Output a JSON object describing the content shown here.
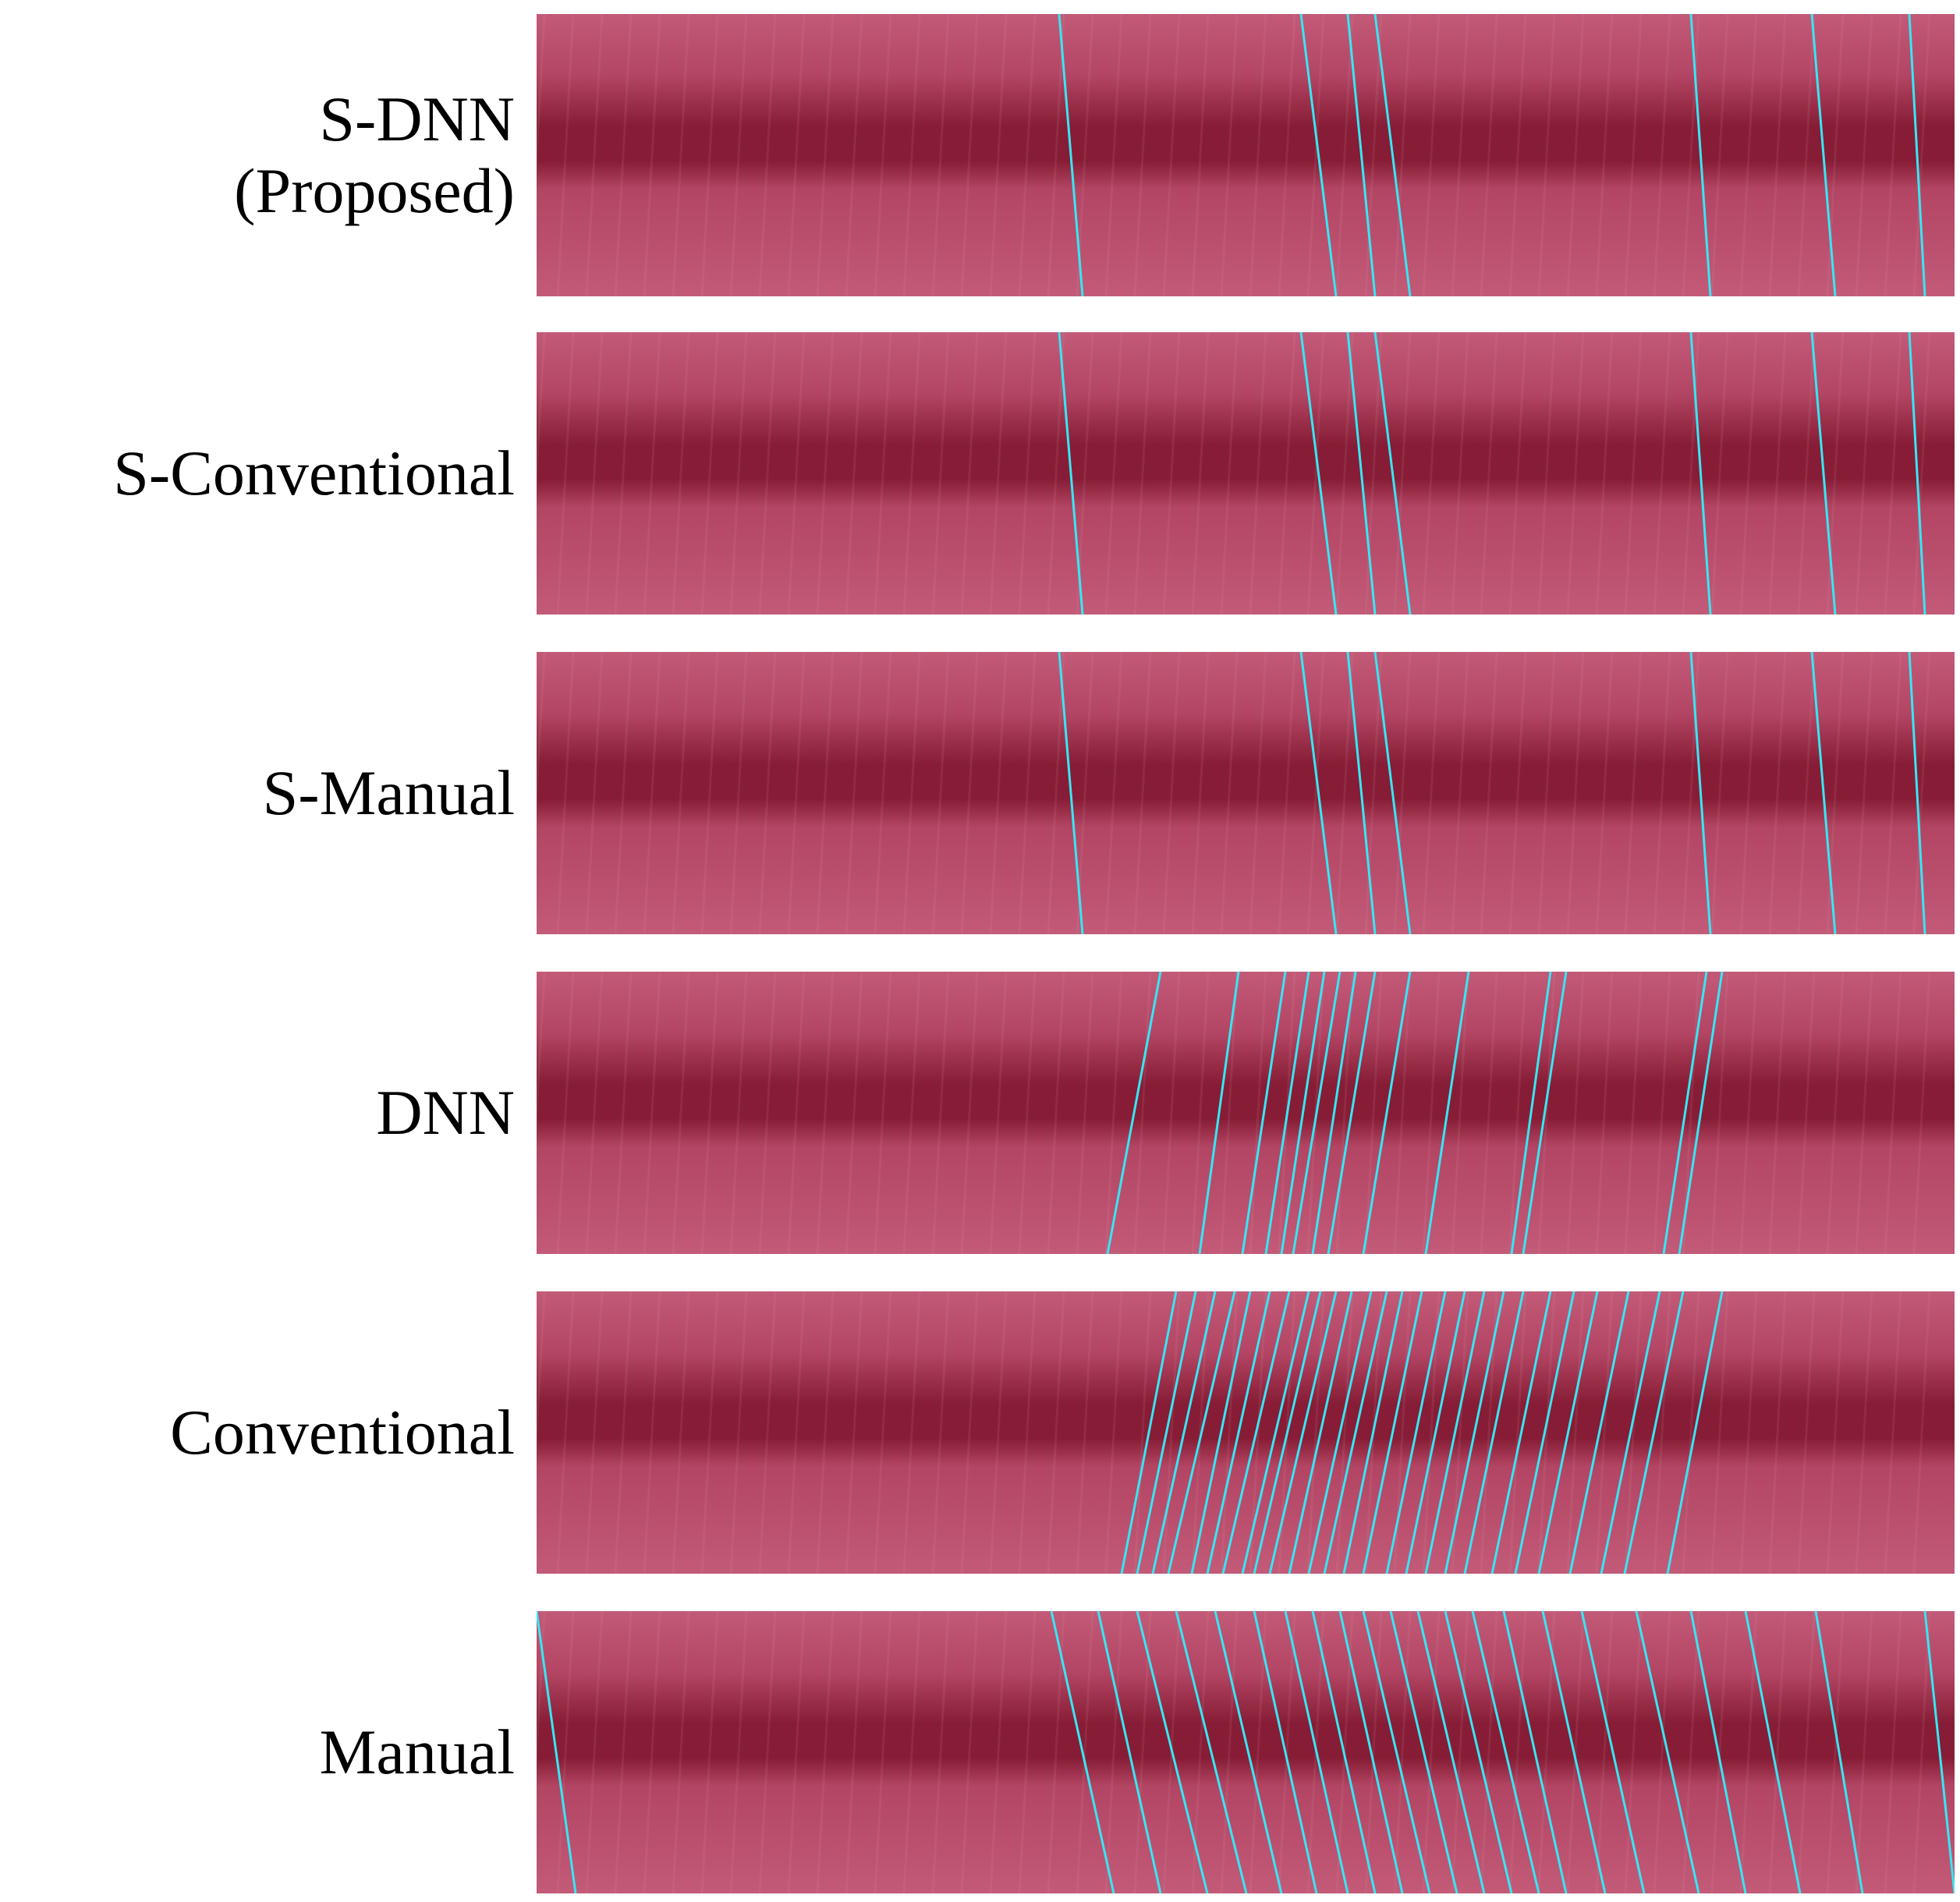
{
  "rows": [
    {
      "lines": [
        "S-DNN",
        "(Proposed)"
      ],
      "pattern": "sparse"
    },
    {
      "lines": [
        "S-Conventional"
      ],
      "pattern": "sparse"
    },
    {
      "lines": [
        "S-Manual"
      ],
      "pattern": "sparse"
    },
    {
      "lines": [
        "DNN"
      ],
      "pattern": "medium"
    },
    {
      "lines": [
        "Conventional"
      ],
      "pattern": "dense"
    },
    {
      "lines": [
        "Manual"
      ],
      "pattern": "dense-manual"
    }
  ],
  "colors": {
    "background": "#ffffff",
    "panel_base": "#b24563",
    "panel_band": "#861c35",
    "panel_light": "#c25a78",
    "overlay_line": "#38e6f2"
  }
}
